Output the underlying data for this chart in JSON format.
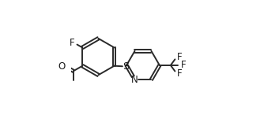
{
  "bg_color": "#ffffff",
  "bond_color": "#2a2a2a",
  "label_color": "#1a1a1a",
  "bond_width": 1.4,
  "dbo": 0.012,
  "font_size": 8.5,
  "figsize": [
    3.34,
    1.55
  ],
  "dpi": 100,
  "xlim": [
    0,
    1
  ],
  "ylim": [
    0,
    1
  ]
}
